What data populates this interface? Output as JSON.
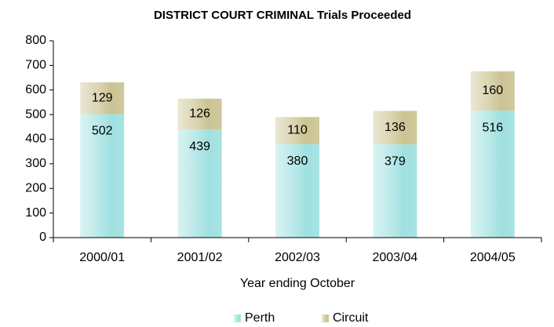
{
  "chart_data": {
    "type": "stacked_bar",
    "title": "DISTRICT COURT CRIMINAL Trials Proceeded",
    "x_label": "Year ending October",
    "categories": [
      "2000/01",
      "2001/02",
      "2002/03",
      "2003/04",
      "2004/05"
    ],
    "series": [
      {
        "name": "Perth",
        "color": "#9fe0e0",
        "values": [
          502,
          439,
          380,
          379,
          516
        ]
      },
      {
        "name": "Circuit",
        "color": "#cbc393",
        "values": [
          129,
          126,
          110,
          136,
          160
        ]
      }
    ],
    "ylim": [
      0,
      800
    ],
    "yticks": [
      0,
      100,
      200,
      300,
      400,
      500,
      600,
      700,
      800
    ],
    "legend": "bottom",
    "grid": false
  }
}
